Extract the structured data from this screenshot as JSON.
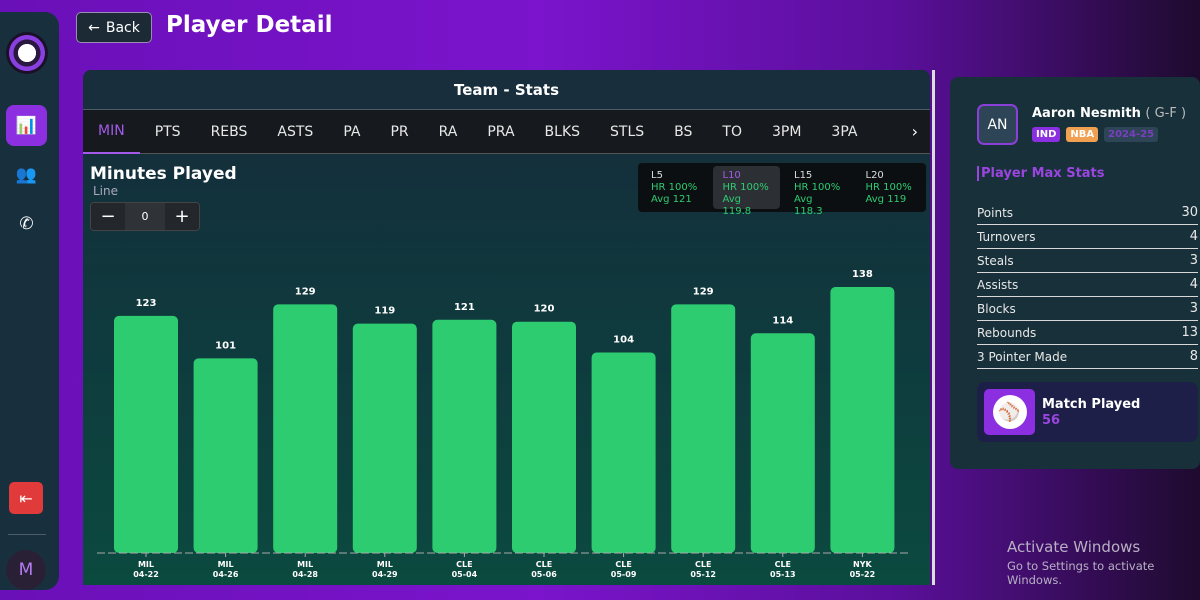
{
  "header": {
    "back_label": "Back",
    "title": "Player Detail"
  },
  "sidebar": {
    "items": [
      {
        "icon": "bar-chart-icon",
        "active": true
      },
      {
        "icon": "users-icon"
      },
      {
        "icon": "whatsapp-icon"
      }
    ],
    "logout_icon": "logout-icon",
    "avatar": "M"
  },
  "panel": {
    "title": "Team - Stats",
    "tabs": [
      "MIN",
      "PTS",
      "REBS",
      "ASTS",
      "PA",
      "PR",
      "RA",
      "PRA",
      "BLKS",
      "STLS",
      "BS",
      "TO",
      "3PM",
      "3PA"
    ],
    "active_tab": "MIN"
  },
  "chart_header": {
    "title": "Minutes Played",
    "line_label": "Line",
    "line_value": "0"
  },
  "hit_rates": [
    {
      "label": "L5",
      "hr": "HR 100%",
      "avg": "Avg 121"
    },
    {
      "label": "L10",
      "hr": "HR 100%",
      "avg": "Avg 119.8"
    },
    {
      "label": "L15",
      "hr": "HR 100%",
      "avg": "Avg 118.3"
    },
    {
      "label": "L20",
      "hr": "HR 100%",
      "avg": "Avg 119"
    }
  ],
  "chart_data": {
    "type": "bar",
    "categories": [
      "MIL\n04-22",
      "MIL\n04-26",
      "MIL\n04-28",
      "MIL\n04-29",
      "CLE\n05-04",
      "CLE\n05-06",
      "CLE\n05-09",
      "CLE\n05-12",
      "CLE\n05-13",
      "NYK\n05-22"
    ],
    "teams": [
      "MIL",
      "MIL",
      "MIL",
      "MIL",
      "CLE",
      "CLE",
      "CLE",
      "CLE",
      "CLE",
      "NYK"
    ],
    "dates": [
      "04-22",
      "04-26",
      "04-28",
      "04-29",
      "05-04",
      "05-06",
      "05-09",
      "05-12",
      "05-13",
      "05-22"
    ],
    "values": [
      123,
      101,
      129,
      119,
      121,
      120,
      104,
      129,
      114,
      138
    ],
    "ylim": [
      0,
      138
    ],
    "bar_color": "#2ecc71",
    "grid": false
  },
  "player": {
    "initials": "AN",
    "name": "Aaron Nesmith",
    "position": "( G-F )",
    "badges": [
      "IND",
      "NBA",
      "2024-25"
    ],
    "max_stats_title": "Player Max Stats",
    "max_stats": [
      {
        "label": "Points",
        "value": "30"
      },
      {
        "label": "Turnovers",
        "value": "4"
      },
      {
        "label": "Steals",
        "value": "3"
      },
      {
        "label": "Assists",
        "value": "4"
      },
      {
        "label": "Blocks",
        "value": "3"
      },
      {
        "label": "Rebounds",
        "value": "13"
      },
      {
        "label": "3 Pointer Made",
        "value": "8"
      }
    ],
    "match_played_label": "Match Played",
    "match_played": "56"
  },
  "watermark": {
    "line1": "Activate Windows",
    "line2": "Go to Settings to activate Windows."
  }
}
